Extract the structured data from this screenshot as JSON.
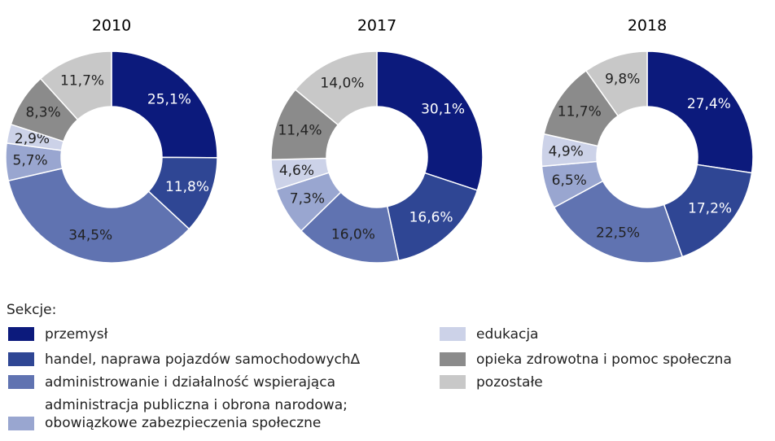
{
  "legend": {
    "title": "Sekcje:",
    "items": [
      "przemysł",
      "handel, naprawa pojazdów samochodowych∆",
      "administrowanie i działalność wspierająca",
      "administracja publiczna i obrona narodowa;\n obowiązkowe zabezpieczenia społeczne",
      "edukacja",
      "opieka zdrowotna i pomoc społeczna",
      "pozostałe"
    ]
  },
  "colors": [
    "#0c1a7c",
    "#2f4694",
    "#6073b1",
    "#99a6d0",
    "#ccd2e8",
    "#8b8b8b",
    "#c8c8c8"
  ],
  "chart_data": [
    {
      "type": "pie",
      "title": "2010",
      "values": [
        25.1,
        11.8,
        34.5,
        5.7,
        2.9,
        8.3,
        11.7
      ],
      "value_labels": [
        "25,1%",
        "11,8%",
        "34,5%",
        "5,7%",
        "2,9%",
        "8,3%",
        "11,7%"
      ]
    },
    {
      "type": "pie",
      "title": "2017",
      "values": [
        30.1,
        16.6,
        16.0,
        7.3,
        4.6,
        11.4,
        14.0
      ],
      "value_labels": [
        "30,1%",
        "16,6%",
        "16,0%",
        "7,3%",
        "4,6%",
        "11,4%",
        "14,0%"
      ]
    },
    {
      "type": "pie",
      "title": "2018",
      "values": [
        27.4,
        17.2,
        22.5,
        6.5,
        4.9,
        11.7,
        9.8
      ],
      "value_labels": [
        "27,4%",
        "17,2%",
        "22,5%",
        "6,5%",
        "4,9%",
        "11,7%",
        "9,8%"
      ]
    }
  ]
}
